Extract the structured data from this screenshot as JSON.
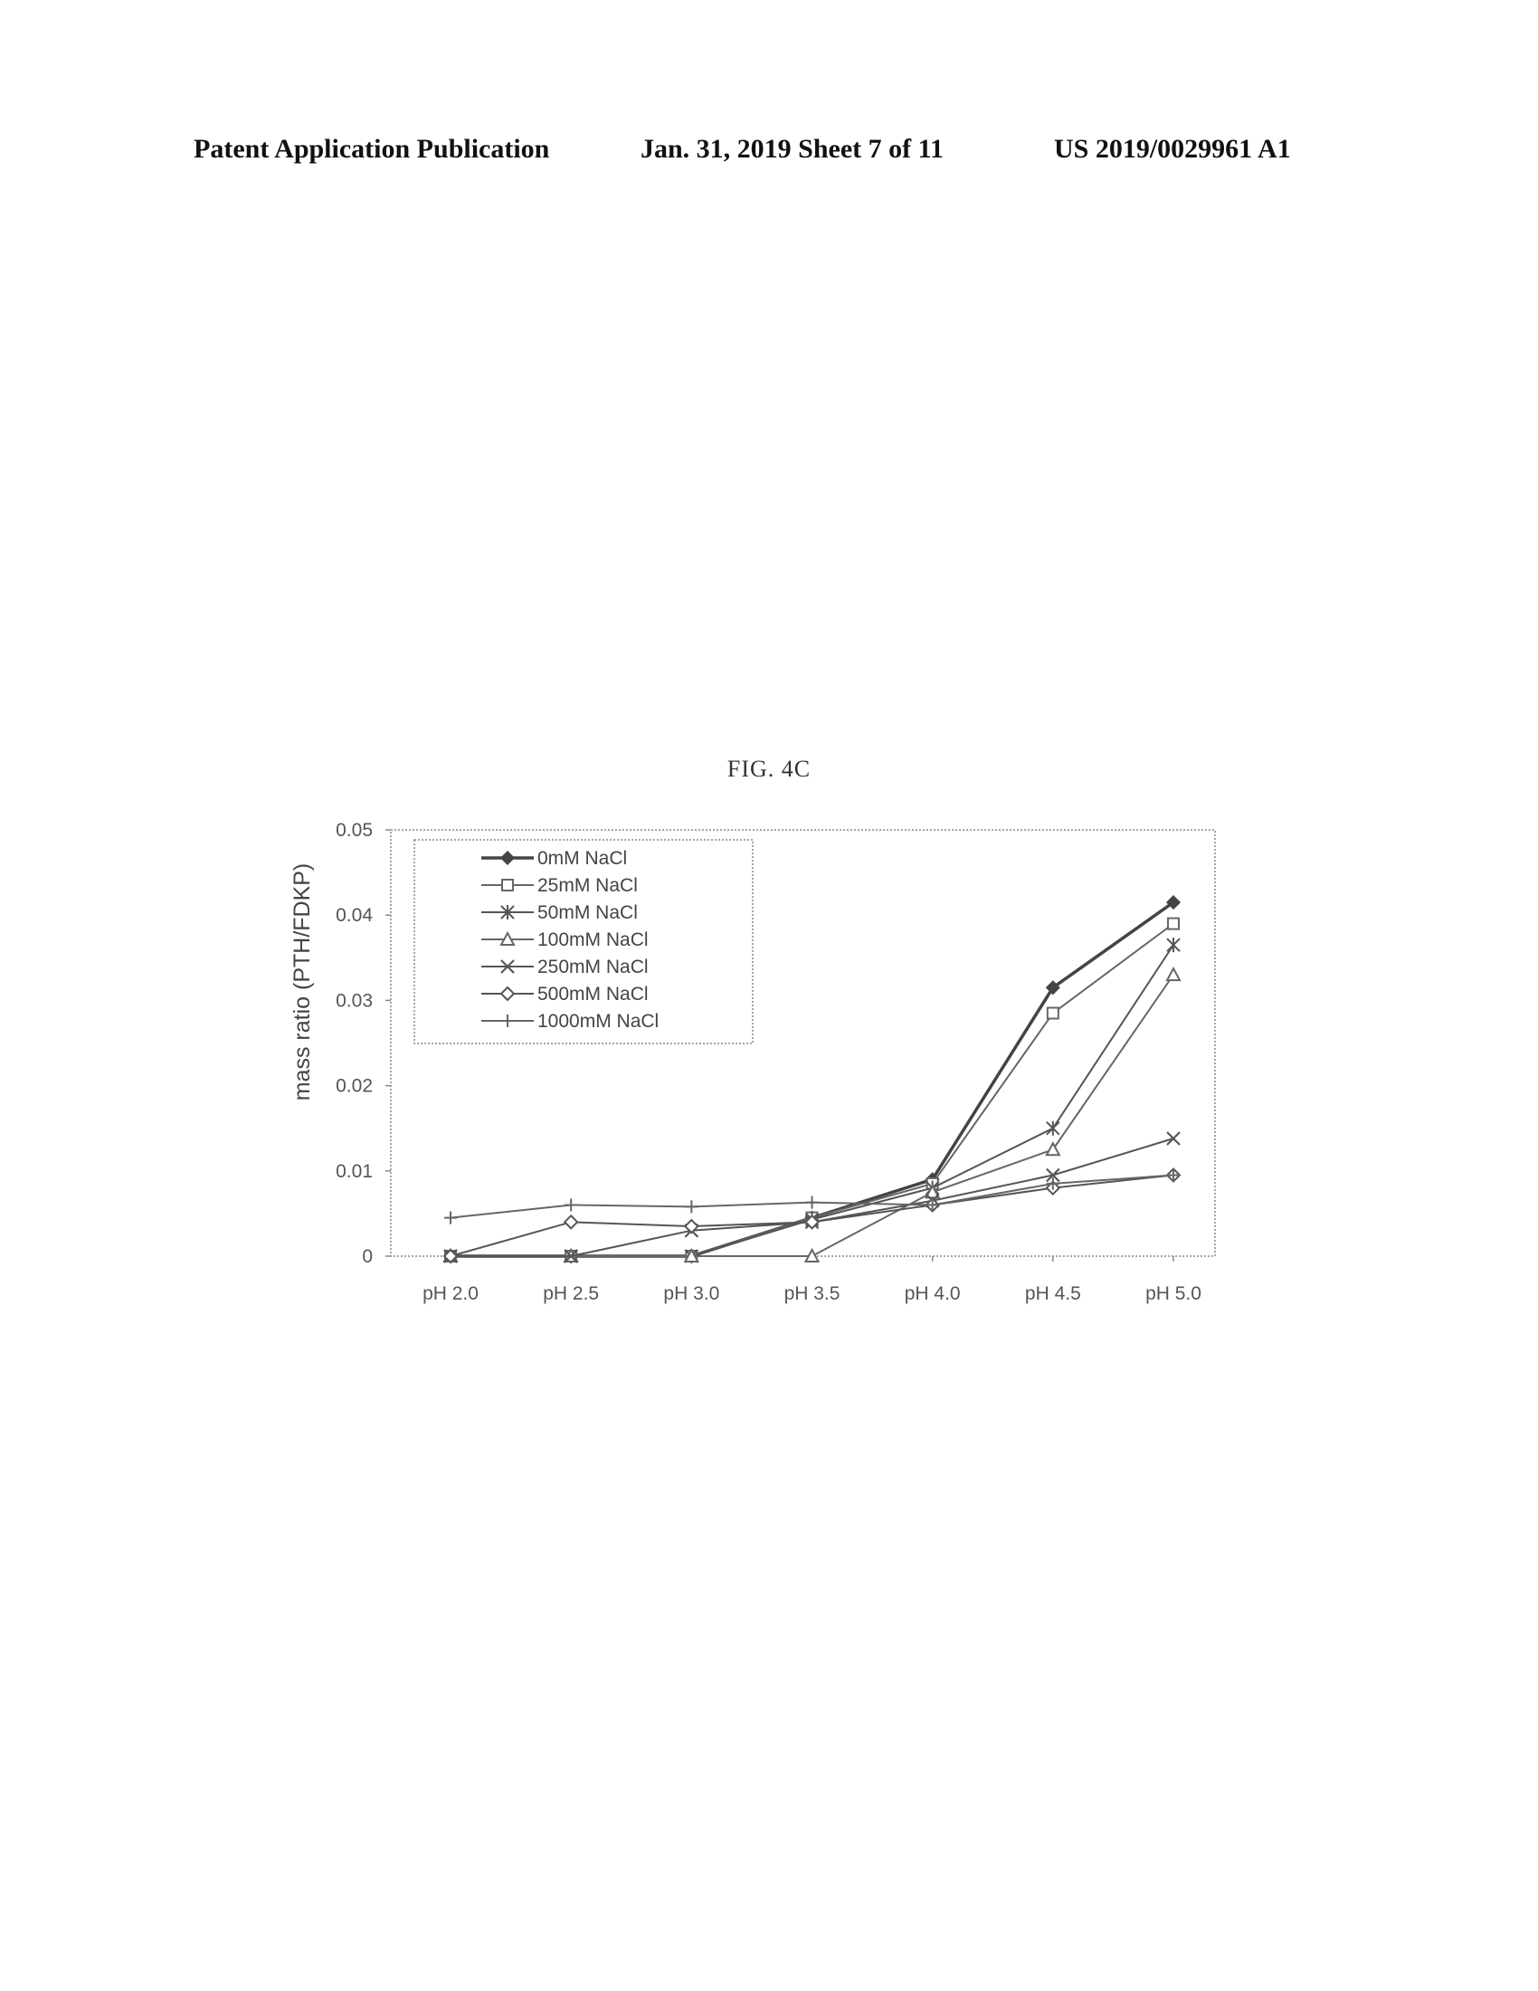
{
  "header": {
    "left": "Patent Application Publication",
    "middle": "Jan. 31, 2019  Sheet 7 of 11",
    "right": "US 2019/0029961 A1"
  },
  "figure_label": "FIG. 4C",
  "chart_data": {
    "type": "line",
    "title": "",
    "xlabel": "",
    "ylabel": "mass ratio (PTH/FDKP)",
    "categories": [
      "pH 2.0",
      "pH 2.5",
      "pH 3.0",
      "pH 3.5",
      "pH 4.0",
      "pH 4.5",
      "pH 5.0"
    ],
    "ylim": [
      0,
      0.05
    ],
    "yticks": [
      0,
      0.01,
      0.02,
      0.03,
      0.04,
      0.05
    ],
    "ytick_labels": [
      "0",
      "0.01",
      "0.02",
      "0.03",
      "0.04",
      "0.05"
    ],
    "grid": false,
    "legend_position": "top-left",
    "series": [
      {
        "name": "0mM NaCl",
        "marker": "diamond-filled",
        "color": "#444444",
        "values": [
          0,
          0,
          0,
          0.0045,
          0.009,
          0.0315,
          0.0415
        ]
      },
      {
        "name": "25mM NaCl",
        "marker": "square",
        "color": "#666666",
        "values": [
          0,
          0,
          0,
          0.0045,
          0.0085,
          0.0285,
          0.039
        ]
      },
      {
        "name": "50mM NaCl",
        "marker": "star",
        "color": "#555555",
        "values": [
          0,
          0,
          0,
          0.0043,
          0.008,
          0.015,
          0.0365
        ]
      },
      {
        "name": "100mM NaCl",
        "marker": "triangle",
        "color": "#666666",
        "values": [
          0,
          0,
          0,
          0,
          0.0075,
          0.0125,
          0.033
        ]
      },
      {
        "name": "250mM NaCl",
        "marker": "x",
        "color": "#555555",
        "values": [
          0,
          0,
          0.003,
          0.004,
          0.0065,
          0.0095,
          0.0138
        ]
      },
      {
        "name": "500mM NaCl",
        "marker": "diamond-open",
        "color": "#555555",
        "values": [
          0,
          0.004,
          0.0035,
          0.004,
          0.006,
          0.008,
          0.0095
        ]
      },
      {
        "name": "1000mM NaCl",
        "marker": "plus",
        "color": "#666666",
        "values": [
          0.0045,
          0.006,
          0.0058,
          0.0063,
          0.006,
          0.0085,
          0.0095
        ]
      }
    ]
  }
}
